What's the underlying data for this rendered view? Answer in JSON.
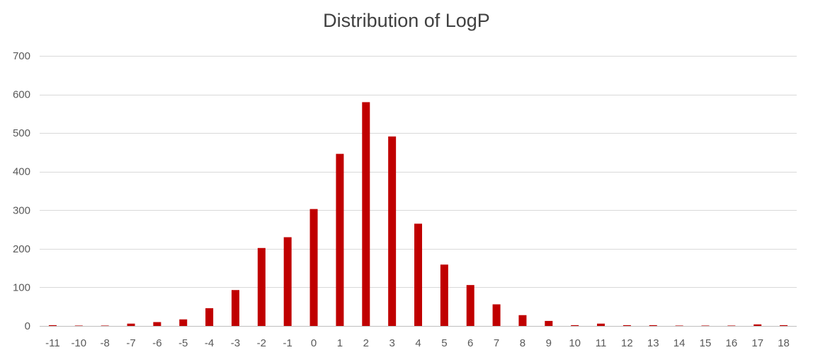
{
  "chart_data": {
    "type": "bar",
    "title": "Distribution of LogP",
    "xlabel": "",
    "ylabel": "",
    "categories": [
      "-11",
      "-10",
      "-8",
      "-7",
      "-6",
      "-5",
      "-4",
      "-3",
      "-2",
      "-1",
      "0",
      "1",
      "2",
      "3",
      "4",
      "5",
      "6",
      "7",
      "8",
      "9",
      "10",
      "11",
      "12",
      "13",
      "14",
      "15",
      "16",
      "17",
      "18"
    ],
    "values": [
      2,
      1,
      1,
      6,
      10,
      17,
      46,
      93,
      202,
      230,
      303,
      446,
      580,
      491,
      265,
      159,
      106,
      56,
      28,
      13,
      2,
      6,
      2,
      2,
      1,
      1,
      1,
      4,
      2
    ],
    "ylim": [
      0,
      700
    ],
    "yticks": [
      0,
      100,
      200,
      300,
      400,
      500,
      600,
      700
    ],
    "grid": true,
    "legend": "none",
    "colors": {
      "bar": "#c00000",
      "grid": "#d9d9d9",
      "axis": "#bfbfbf",
      "tick_text": "#595959",
      "title_text": "#404040"
    }
  }
}
